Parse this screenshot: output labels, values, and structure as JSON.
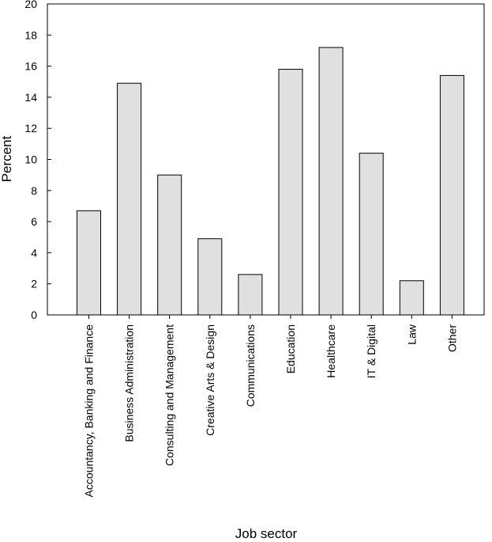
{
  "chart_data": {
    "type": "bar",
    "title": "",
    "xlabel": "Job sector",
    "ylabel": "Percent",
    "ylim": [
      0,
      20
    ],
    "yticks": [
      0,
      2,
      4,
      6,
      8,
      10,
      12,
      14,
      16,
      18,
      20
    ],
    "grid": false,
    "bar_color": "#e0e0e0",
    "categories": [
      "Accountancy, Banking and Finance",
      "Business Administration",
      "Consulting and Management",
      "Creative Arts & Design",
      "Communications",
      "Education",
      "Healthcare",
      "IT & Digital",
      "Law",
      "Other"
    ],
    "values": [
      6.7,
      14.9,
      9.0,
      4.9,
      2.6,
      15.8,
      17.2,
      10.4,
      2.2,
      15.4
    ]
  }
}
